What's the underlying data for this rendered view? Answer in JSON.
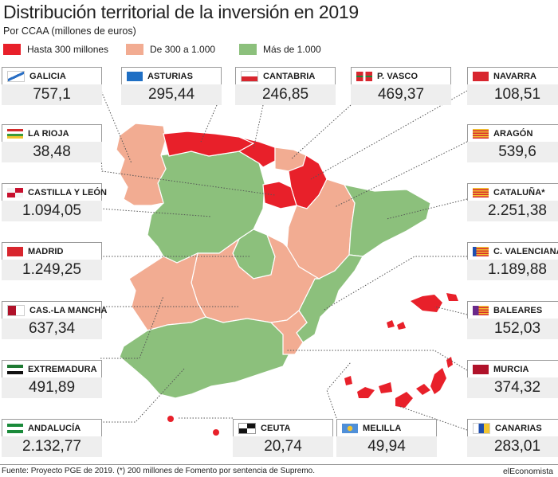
{
  "title": "Distribución territorial de la inversión en 2019",
  "subtitle": "Por CCAA (millones de euros)",
  "legend": [
    {
      "label": "Hasta 300 millones",
      "color": "#e8202a"
    },
    {
      "label": "De 300 a 1.000",
      "color": "#f2ac92"
    },
    {
      "label": "Más de 1.000",
      "color": "#8cc07c"
    }
  ],
  "regions": {
    "galicia": {
      "name": "GALICIA",
      "value": "757,1",
      "category": 1
    },
    "asturias": {
      "name": "ASTURIAS",
      "value": "295,44",
      "category": 0
    },
    "cantabria": {
      "name": "CANTABRIA",
      "value": "246,85",
      "category": 0
    },
    "pvasco": {
      "name": "P. VASCO",
      "value": "469,37",
      "category": 1
    },
    "navarra": {
      "name": "NAVARRA",
      "value": "108,51",
      "category": 0
    },
    "rioja": {
      "name": "LA RIOJA",
      "value": "38,48",
      "category": 0
    },
    "aragon": {
      "name": "ARAGÓN",
      "value": "539,6",
      "category": 1
    },
    "cyl": {
      "name": "CASTILLA Y LEÓN",
      "value": "1.094,05",
      "category": 2
    },
    "cataluna": {
      "name": "CATALUÑA*",
      "value": "2.251,38",
      "category": 2
    },
    "madrid": {
      "name": "MADRID",
      "value": "1.249,25",
      "category": 2
    },
    "cvalenciana": {
      "name": "C. VALENCIANA",
      "value": "1.189,88",
      "category": 2
    },
    "clm": {
      "name": "CAS.-LA MANCHA",
      "value": "637,34",
      "category": 1
    },
    "baleares": {
      "name": "BALEARES",
      "value": "152,03",
      "category": 0
    },
    "extremadura": {
      "name": "EXTREMADURA",
      "value": "491,89",
      "category": 1
    },
    "murcia": {
      "name": "MURCIA",
      "value": "374,32",
      "category": 1
    },
    "andalucia": {
      "name": "ANDALUCÍA",
      "value": "2.132,77",
      "category": 2
    },
    "ceuta": {
      "name": "CEUTA",
      "value": "20,74",
      "category": 0
    },
    "melilla": {
      "name": "MELILLA",
      "value": "49,94",
      "category": 0
    },
    "canarias": {
      "name": "CANARIAS",
      "value": "283,01",
      "category": 0
    }
  },
  "footer": "Fuente: Proyecto PGE de 2019. (*) 200 millones de Fomento por sentencia de Supremo.",
  "brand": "elEconomista"
}
